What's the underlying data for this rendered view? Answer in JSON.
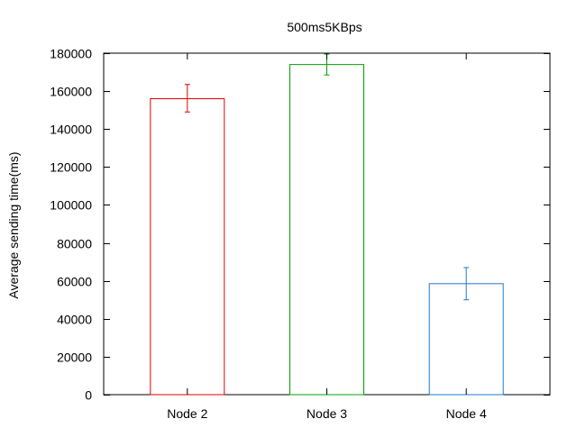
{
  "chart_data": {
    "type": "bar",
    "title": "500ms5KBps",
    "xlabel": "",
    "ylabel": "Average sending time(ms)",
    "categories": [
      "Node 2",
      "Node 3",
      "Node 4"
    ],
    "values": [
      156000,
      174000,
      58500
    ],
    "error_low": [
      149000,
      168500,
      50000
    ],
    "error_high": [
      163500,
      179500,
      67000
    ],
    "colors": [
      "#e00000",
      "#00a000",
      "#1f78c8"
    ],
    "ylim": [
      0,
      180000
    ],
    "yticks": [
      "0",
      "20000",
      "40000",
      "60000",
      "80000",
      "100000",
      "120000",
      "140000",
      "160000",
      "180000"
    ],
    "grid": false,
    "legend": "none"
  }
}
